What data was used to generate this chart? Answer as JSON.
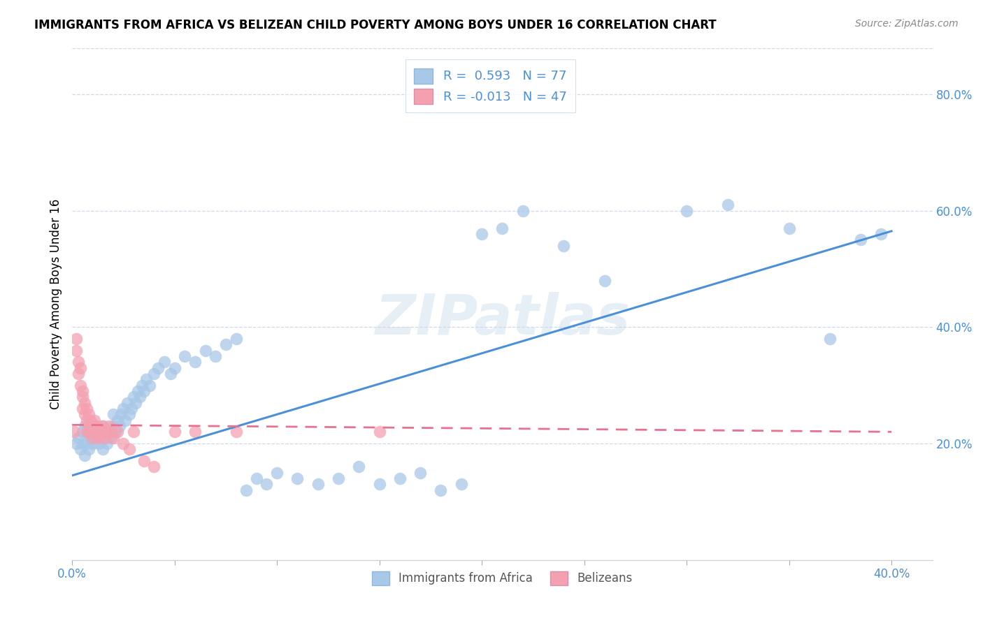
{
  "title": "IMMIGRANTS FROM AFRICA VS BELIZEAN CHILD POVERTY AMONG BOYS UNDER 16 CORRELATION CHART",
  "source": "Source: ZipAtlas.com",
  "ylabel": "Child Poverty Among Boys Under 16",
  "xlim": [
    0.0,
    0.42
  ],
  "ylim": [
    0.0,
    0.88
  ],
  "xticks": [
    0.0,
    0.05,
    0.1,
    0.15,
    0.2,
    0.25,
    0.3,
    0.35,
    0.4
  ],
  "xticklabels": [
    "0.0%",
    "",
    "",
    "",
    "",
    "",
    "",
    "",
    "40.0%"
  ],
  "yticks_right": [
    0.2,
    0.4,
    0.6,
    0.8
  ],
  "ytick_labels_right": [
    "20.0%",
    "40.0%",
    "60.0%",
    "80.0%"
  ],
  "legend_R_blue": "0.593",
  "legend_N_blue": "77",
  "legend_R_pink": "-0.013",
  "legend_N_pink": "47",
  "blue_color": "#a8c8e8",
  "pink_color": "#f4a0b0",
  "blue_line_color": "#4a90d9",
  "pink_line_color": "#e87090",
  "watermark": "ZIPatlas",
  "blue_scatter_x": [
    0.002,
    0.003,
    0.004,
    0.005,
    0.005,
    0.006,
    0.006,
    0.007,
    0.007,
    0.008,
    0.009,
    0.01,
    0.01,
    0.011,
    0.012,
    0.013,
    0.014,
    0.015,
    0.015,
    0.016,
    0.017,
    0.018,
    0.019,
    0.02,
    0.02,
    0.021,
    0.022,
    0.023,
    0.024,
    0.025,
    0.026,
    0.027,
    0.028,
    0.029,
    0.03,
    0.031,
    0.032,
    0.033,
    0.034,
    0.035,
    0.036,
    0.038,
    0.04,
    0.042,
    0.045,
    0.048,
    0.05,
    0.055,
    0.06,
    0.065,
    0.07,
    0.075,
    0.08,
    0.085,
    0.09,
    0.095,
    0.1,
    0.11,
    0.12,
    0.13,
    0.14,
    0.15,
    0.16,
    0.17,
    0.18,
    0.19,
    0.2,
    0.21,
    0.22,
    0.24,
    0.26,
    0.3,
    0.32,
    0.35,
    0.37,
    0.385,
    0.395
  ],
  "blue_scatter_y": [
    0.2,
    0.21,
    0.19,
    0.22,
    0.2,
    0.18,
    0.23,
    0.2,
    0.22,
    0.19,
    0.21,
    0.2,
    0.22,
    0.23,
    0.21,
    0.2,
    0.22,
    0.19,
    0.23,
    0.21,
    0.2,
    0.22,
    0.21,
    0.23,
    0.25,
    0.22,
    0.24,
    0.23,
    0.25,
    0.26,
    0.24,
    0.27,
    0.25,
    0.26,
    0.28,
    0.27,
    0.29,
    0.28,
    0.3,
    0.29,
    0.31,
    0.3,
    0.32,
    0.33,
    0.34,
    0.32,
    0.33,
    0.35,
    0.34,
    0.36,
    0.35,
    0.37,
    0.38,
    0.12,
    0.14,
    0.13,
    0.15,
    0.14,
    0.13,
    0.14,
    0.16,
    0.13,
    0.14,
    0.15,
    0.12,
    0.13,
    0.56,
    0.57,
    0.6,
    0.54,
    0.48,
    0.6,
    0.61,
    0.57,
    0.38,
    0.55,
    0.56
  ],
  "pink_scatter_x": [
    0.001,
    0.002,
    0.002,
    0.003,
    0.003,
    0.004,
    0.004,
    0.005,
    0.005,
    0.005,
    0.006,
    0.006,
    0.007,
    0.007,
    0.007,
    0.008,
    0.008,
    0.008,
    0.009,
    0.009,
    0.01,
    0.01,
    0.01,
    0.011,
    0.011,
    0.012,
    0.012,
    0.013,
    0.013,
    0.014,
    0.015,
    0.015,
    0.016,
    0.017,
    0.018,
    0.019,
    0.02,
    0.022,
    0.025,
    0.028,
    0.03,
    0.035,
    0.04,
    0.05,
    0.06,
    0.08,
    0.15
  ],
  "pink_scatter_y": [
    0.22,
    0.36,
    0.38,
    0.34,
    0.32,
    0.3,
    0.33,
    0.28,
    0.26,
    0.29,
    0.25,
    0.27,
    0.24,
    0.26,
    0.22,
    0.25,
    0.23,
    0.22,
    0.24,
    0.22,
    0.23,
    0.21,
    0.22,
    0.23,
    0.24,
    0.22,
    0.23,
    0.22,
    0.21,
    0.22,
    0.23,
    0.22,
    0.21,
    0.22,
    0.23,
    0.22,
    0.21,
    0.22,
    0.2,
    0.19,
    0.22,
    0.17,
    0.16,
    0.22,
    0.22,
    0.22,
    0.22
  ],
  "blue_trendline_x": [
    0.0,
    0.4
  ],
  "blue_trendline_y": [
    0.145,
    0.565
  ],
  "pink_trendline_x": [
    0.0,
    0.4
  ],
  "pink_trendline_y": [
    0.232,
    0.22
  ]
}
